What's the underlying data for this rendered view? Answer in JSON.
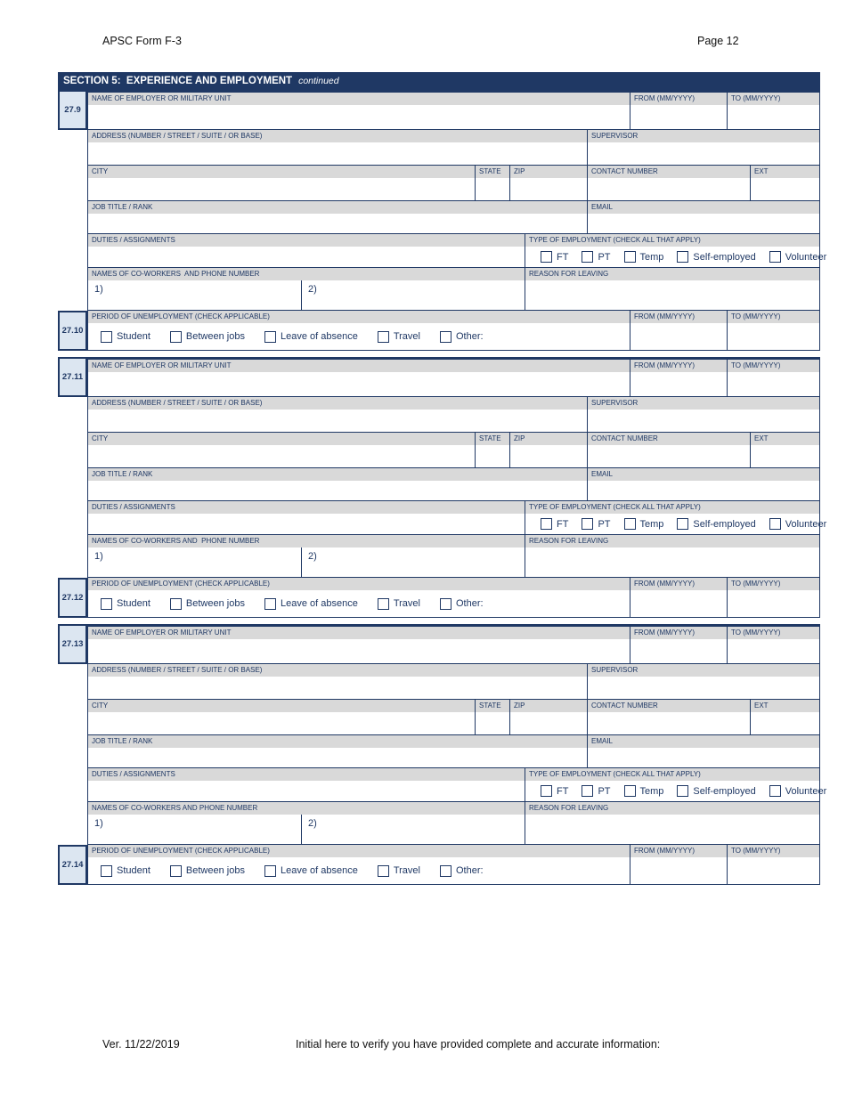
{
  "page": {
    "form_title": "APSC Form F-3",
    "page_number": "Page 12"
  },
  "section": {
    "title": "SECTION 5:  EXPERIENCE AND EMPLOYMENT",
    "subtitle": "continued"
  },
  "labels": {
    "name": "NAME OF EMPLOYER OR MILITARY UNIT",
    "from": "FROM (MM/YYYY)",
    "to": "TO (MM/YYYY)",
    "address": "ADDRESS (NUMBER / STREET / SUITE / OR BASE)",
    "supervisor": "SUPERVISOR",
    "city": "CITY",
    "state": "STATE",
    "zip": "ZIP",
    "contact": "CONTACT NUMBER",
    "ext": "EXT",
    "job": "JOB TITLE / RANK",
    "email": "EMAIL",
    "duties": "DUTIES / ASSIGNMENTS",
    "type": "TYPE OF EMPLOYMENT (CHECK ALL THAT APPLY)",
    "reason": "REASON FOR LEAVING",
    "unemployment": "PERIOD OF UNEMPLOYMENT (CHECK APPLICABLE)",
    "coworker1": "1)",
    "coworker2": "2)"
  },
  "employment_types": [
    "FT",
    "PT",
    "Temp",
    "Self-employed",
    "Volunteer"
  ],
  "unemployment_options": [
    "Student",
    "Between jobs",
    "Leave of absence",
    "Travel",
    "Other:"
  ],
  "employer_blocks": [
    {
      "number": "27.9",
      "coworkers_label": "NAMES OF CO-WORKERS  AND PHONE NUMBER"
    },
    {
      "number": "27.11",
      "coworkers_label": "NAMES OF CO-WORKERS AND  PHONE NUMBER"
    },
    {
      "number": "27.13",
      "coworkers_label": "NAMES OF CO-WORKERS AND PHONE NUMBER"
    }
  ],
  "unemployment_rows": [
    {
      "number": "27.10"
    },
    {
      "number": "27.12"
    },
    {
      "number": "27.14"
    }
  ],
  "footer": {
    "version": "Ver. 11/22/2019",
    "initial_text": "Initial here to verify you have provided complete and accurate information:"
  },
  "colors": {
    "navy": "#1f3864",
    "label_bg": "#d9d9d9",
    "number_cell_bg": "#dce6f1",
    "page_bg": "#ffffff"
  }
}
